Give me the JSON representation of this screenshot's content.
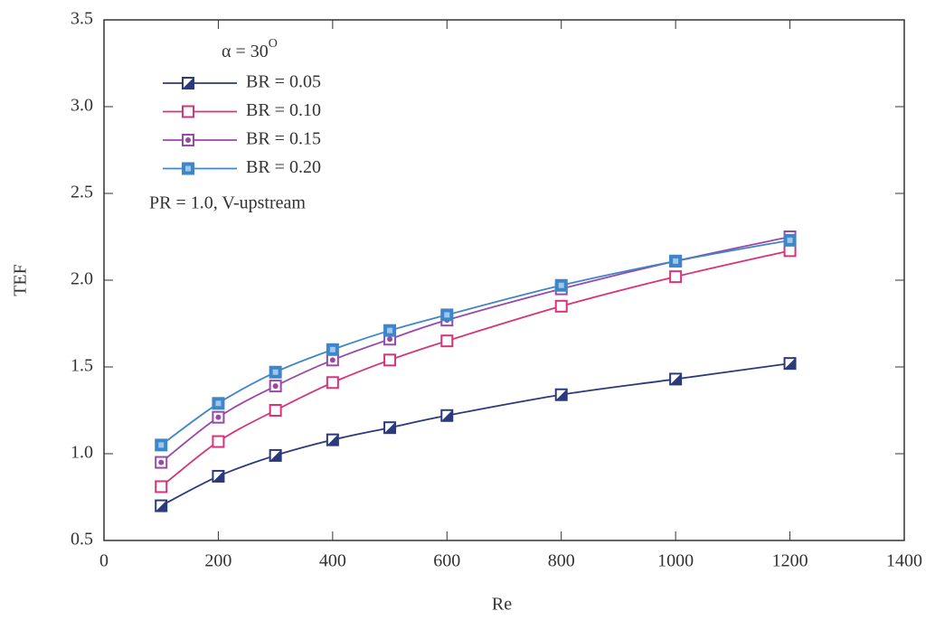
{
  "chart_data": {
    "type": "line",
    "x_label": "Re",
    "y_label": "TEF",
    "annotations": [
      {
        "text": "α = 30",
        "superscript": "O"
      },
      {
        "text": "PR = 1.0, V-upstream"
      }
    ],
    "x": [
      100,
      200,
      300,
      400,
      500,
      600,
      800,
      1000,
      1200
    ],
    "series": [
      {
        "name": "BR = 0.05",
        "color": "#2b3a7a",
        "marker": "half",
        "values": [
          0.7,
          0.87,
          0.99,
          1.08,
          1.15,
          1.22,
          1.34,
          1.43,
          1.52
        ]
      },
      {
        "name": "BR = 0.10",
        "color": "#d6337a",
        "marker": "open",
        "values": [
          0.81,
          1.07,
          1.25,
          1.41,
          1.54,
          1.65,
          1.85,
          2.02,
          2.17
        ]
      },
      {
        "name": "BR = 0.15",
        "color": "#9a48a8",
        "marker": "dot",
        "values": [
          0.95,
          1.21,
          1.39,
          1.54,
          1.66,
          1.77,
          1.95,
          2.11,
          2.25
        ]
      },
      {
        "name": "BR = 0.20",
        "color": "#3f86c9",
        "marker": "filled",
        "values": [
          1.05,
          1.29,
          1.47,
          1.6,
          1.71,
          1.8,
          1.97,
          2.11,
          2.23
        ]
      }
    ],
    "xlim": [
      0,
      1400
    ],
    "xticks": [
      0,
      200,
      400,
      600,
      800,
      1000,
      1200,
      1400
    ],
    "ylim": [
      0.5,
      3.5
    ],
    "yticks": [
      0.5,
      {
        "value": 1,
        "label": "1.0"
      },
      1.5,
      {
        "value": 2,
        "label": "2.0"
      },
      2.5,
      {
        "value": 3,
        "label": "3.0"
      },
      3.5
    ],
    "grid": false
  }
}
